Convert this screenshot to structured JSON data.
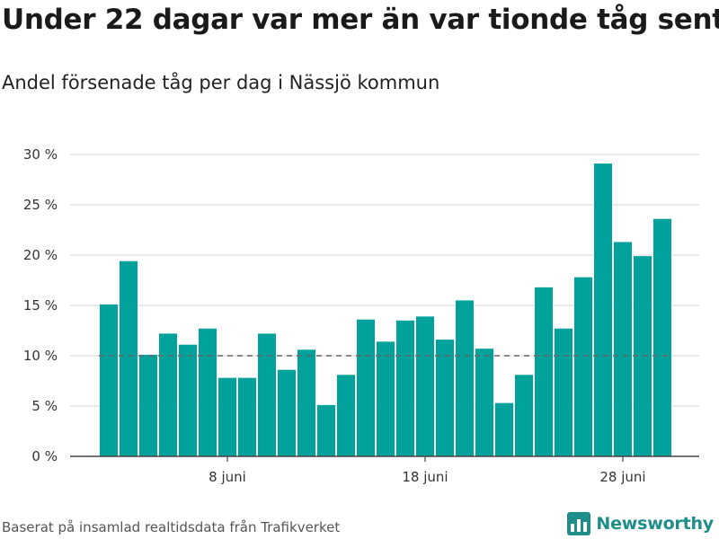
{
  "title": "Under 22 dagar var mer än var tionde tåg sent",
  "subtitle": "Andel försenade tåg per dag i Nässjö kommun",
  "source": "Baserat på insamlad realtidsdata från Trafikverket",
  "brand": {
    "name": "Newsworthy",
    "icon": "newsworthy-logo-icon"
  },
  "colors": {
    "bar": "#00a29b",
    "reference_line": "#666666",
    "grid": "#dddddd",
    "brand": "#1f8d8a"
  },
  "chart_data": {
    "type": "bar",
    "categories": [
      "2 juni",
      "3 juni",
      "4 juni",
      "5 juni",
      "6 juni",
      "7 juni",
      "8 juni",
      "9 juni",
      "10 juni",
      "11 juni",
      "12 juni",
      "13 juni",
      "14 juni",
      "15 juni",
      "16 juni",
      "17 juni",
      "18 juni",
      "19 juni",
      "20 juni",
      "21 juni",
      "22 juni",
      "23 juni",
      "24 juni",
      "25 juni",
      "26 juni",
      "27 juni",
      "28 juni",
      "29 juni",
      "30 juni"
    ],
    "values": [
      15.1,
      19.4,
      10.1,
      12.2,
      11.1,
      12.7,
      7.8,
      7.8,
      12.2,
      8.6,
      10.6,
      5.1,
      8.1,
      13.6,
      11.4,
      13.5,
      13.9,
      11.6,
      15.5,
      10.7,
      5.3,
      8.1,
      16.8,
      12.7,
      17.8,
      29.1,
      21.3,
      19.9,
      23.6
    ],
    "reference_line": {
      "value": 10,
      "style": "dashed"
    },
    "ylim": [
      0,
      30
    ],
    "yticks": [
      0,
      5,
      10,
      15,
      20,
      25,
      30
    ],
    "ytick_labels": [
      "0 %",
      "5 %",
      "10 %",
      "15 %",
      "20 %",
      "25 %",
      "30 %"
    ],
    "xticks": [
      {
        "label": "8 juni",
        "category": "8 juni"
      },
      {
        "label": "18 juni",
        "category": "18 juni"
      },
      {
        "label": "28 juni",
        "category": "28 juni"
      }
    ],
    "xlabel": "",
    "ylabel": "",
    "grid": true,
    "legend": "none"
  }
}
